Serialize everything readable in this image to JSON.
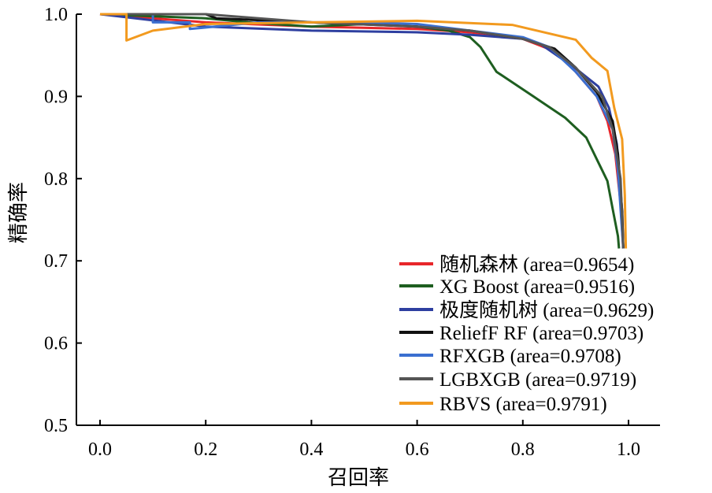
{
  "chart_data": {
    "type": "line",
    "xlabel": "召回率",
    "ylabel": "精确率",
    "xlim": [
      0,
      1.0
    ],
    "ylim": [
      0.5,
      1.0
    ],
    "xticks": [
      "0.0",
      "0.2",
      "0.4",
      "0.6",
      "0.8",
      "1.0"
    ],
    "yticks": [
      "0.5",
      "0.6",
      "0.7",
      "0.8",
      "0.9",
      "1.0"
    ],
    "legend_position": "bottom-right",
    "grid": false,
    "series": [
      {
        "name": "随机森林 (area=0.9654)",
        "color": "#e8262a",
        "x": [
          0,
          0.1,
          0.2,
          0.4,
          0.6,
          0.7,
          0.8,
          0.86,
          0.9,
          0.94,
          0.96,
          0.975,
          0.985,
          0.99
        ],
        "y": [
          1.0,
          0.995,
          0.99,
          0.985,
          0.982,
          0.978,
          0.97,
          0.955,
          0.93,
          0.9,
          0.87,
          0.83,
          0.77,
          0.715
        ]
      },
      {
        "name": "XG Boost (area=0.9516)",
        "color": "#1e5e20",
        "x": [
          0,
          0.2,
          0.28,
          0.4,
          0.5,
          0.6,
          0.66,
          0.7,
          0.72,
          0.75,
          0.82,
          0.88,
          0.92,
          0.96,
          0.97,
          0.98,
          0.982
        ],
        "y": [
          1.0,
          0.995,
          0.99,
          0.985,
          0.988,
          0.985,
          0.98,
          0.972,
          0.96,
          0.93,
          0.9,
          0.874,
          0.85,
          0.797,
          0.763,
          0.73,
          0.715
        ]
      },
      {
        "name": "极度随机树 (area=0.9629)",
        "color": "#2e3fa0",
        "x": [
          0,
          0.2,
          0.4,
          0.6,
          0.7,
          0.8,
          0.835,
          0.9,
          0.943,
          0.963,
          0.978,
          0.988,
          0.99
        ],
        "y": [
          1.0,
          0.985,
          0.98,
          0.978,
          0.975,
          0.97,
          0.963,
          0.934,
          0.912,
          0.886,
          0.842,
          0.76,
          0.715
        ]
      },
      {
        "name": "ReliefF RF (area=0.9703)",
        "color": "#111111",
        "x": [
          0,
          0.2,
          0.22,
          0.4,
          0.6,
          0.7,
          0.8,
          0.86,
          0.9,
          0.94,
          0.97,
          0.98,
          0.988,
          0.99
        ],
        "y": [
          1.0,
          1.0,
          0.995,
          0.99,
          0.985,
          0.98,
          0.97,
          0.958,
          0.935,
          0.905,
          0.87,
          0.83,
          0.76,
          0.715
        ]
      },
      {
        "name": "RFXGB (area=0.9708)",
        "color": "#3a6fd0",
        "x": [
          0,
          0.1,
          0.1,
          0.17,
          0.17,
          0.3,
          0.5,
          0.6,
          0.7,
          0.8,
          0.85,
          0.9,
          0.94,
          0.97,
          0.98,
          0.99
        ],
        "y": [
          1.0,
          1.0,
          0.99,
          0.99,
          0.982,
          0.99,
          0.99,
          0.988,
          0.98,
          0.972,
          0.96,
          0.93,
          0.9,
          0.86,
          0.81,
          0.715
        ]
      },
      {
        "name": "LGBXGB (area=0.9719)",
        "color": "#555555",
        "x": [
          0,
          0.2,
          0.4,
          0.6,
          0.7,
          0.8,
          0.85,
          0.9,
          0.95,
          0.97,
          0.985,
          0.99
        ],
        "y": [
          1.0,
          1.0,
          0.99,
          0.985,
          0.98,
          0.97,
          0.96,
          0.935,
          0.9,
          0.86,
          0.8,
          0.715
        ]
      },
      {
        "name": "RBVS (area=0.9791)",
        "color": "#f29a1f",
        "x": [
          0,
          0.05,
          0.05,
          0.1,
          0.2,
          0.4,
          0.6,
          0.78,
          0.9,
          0.93,
          0.96,
          0.973,
          0.988,
          0.993,
          0.995
        ],
        "y": [
          1.0,
          1.0,
          0.968,
          0.98,
          0.988,
          0.99,
          0.992,
          0.987,
          0.969,
          0.947,
          0.931,
          0.886,
          0.848,
          0.78,
          0.715
        ]
      }
    ]
  }
}
